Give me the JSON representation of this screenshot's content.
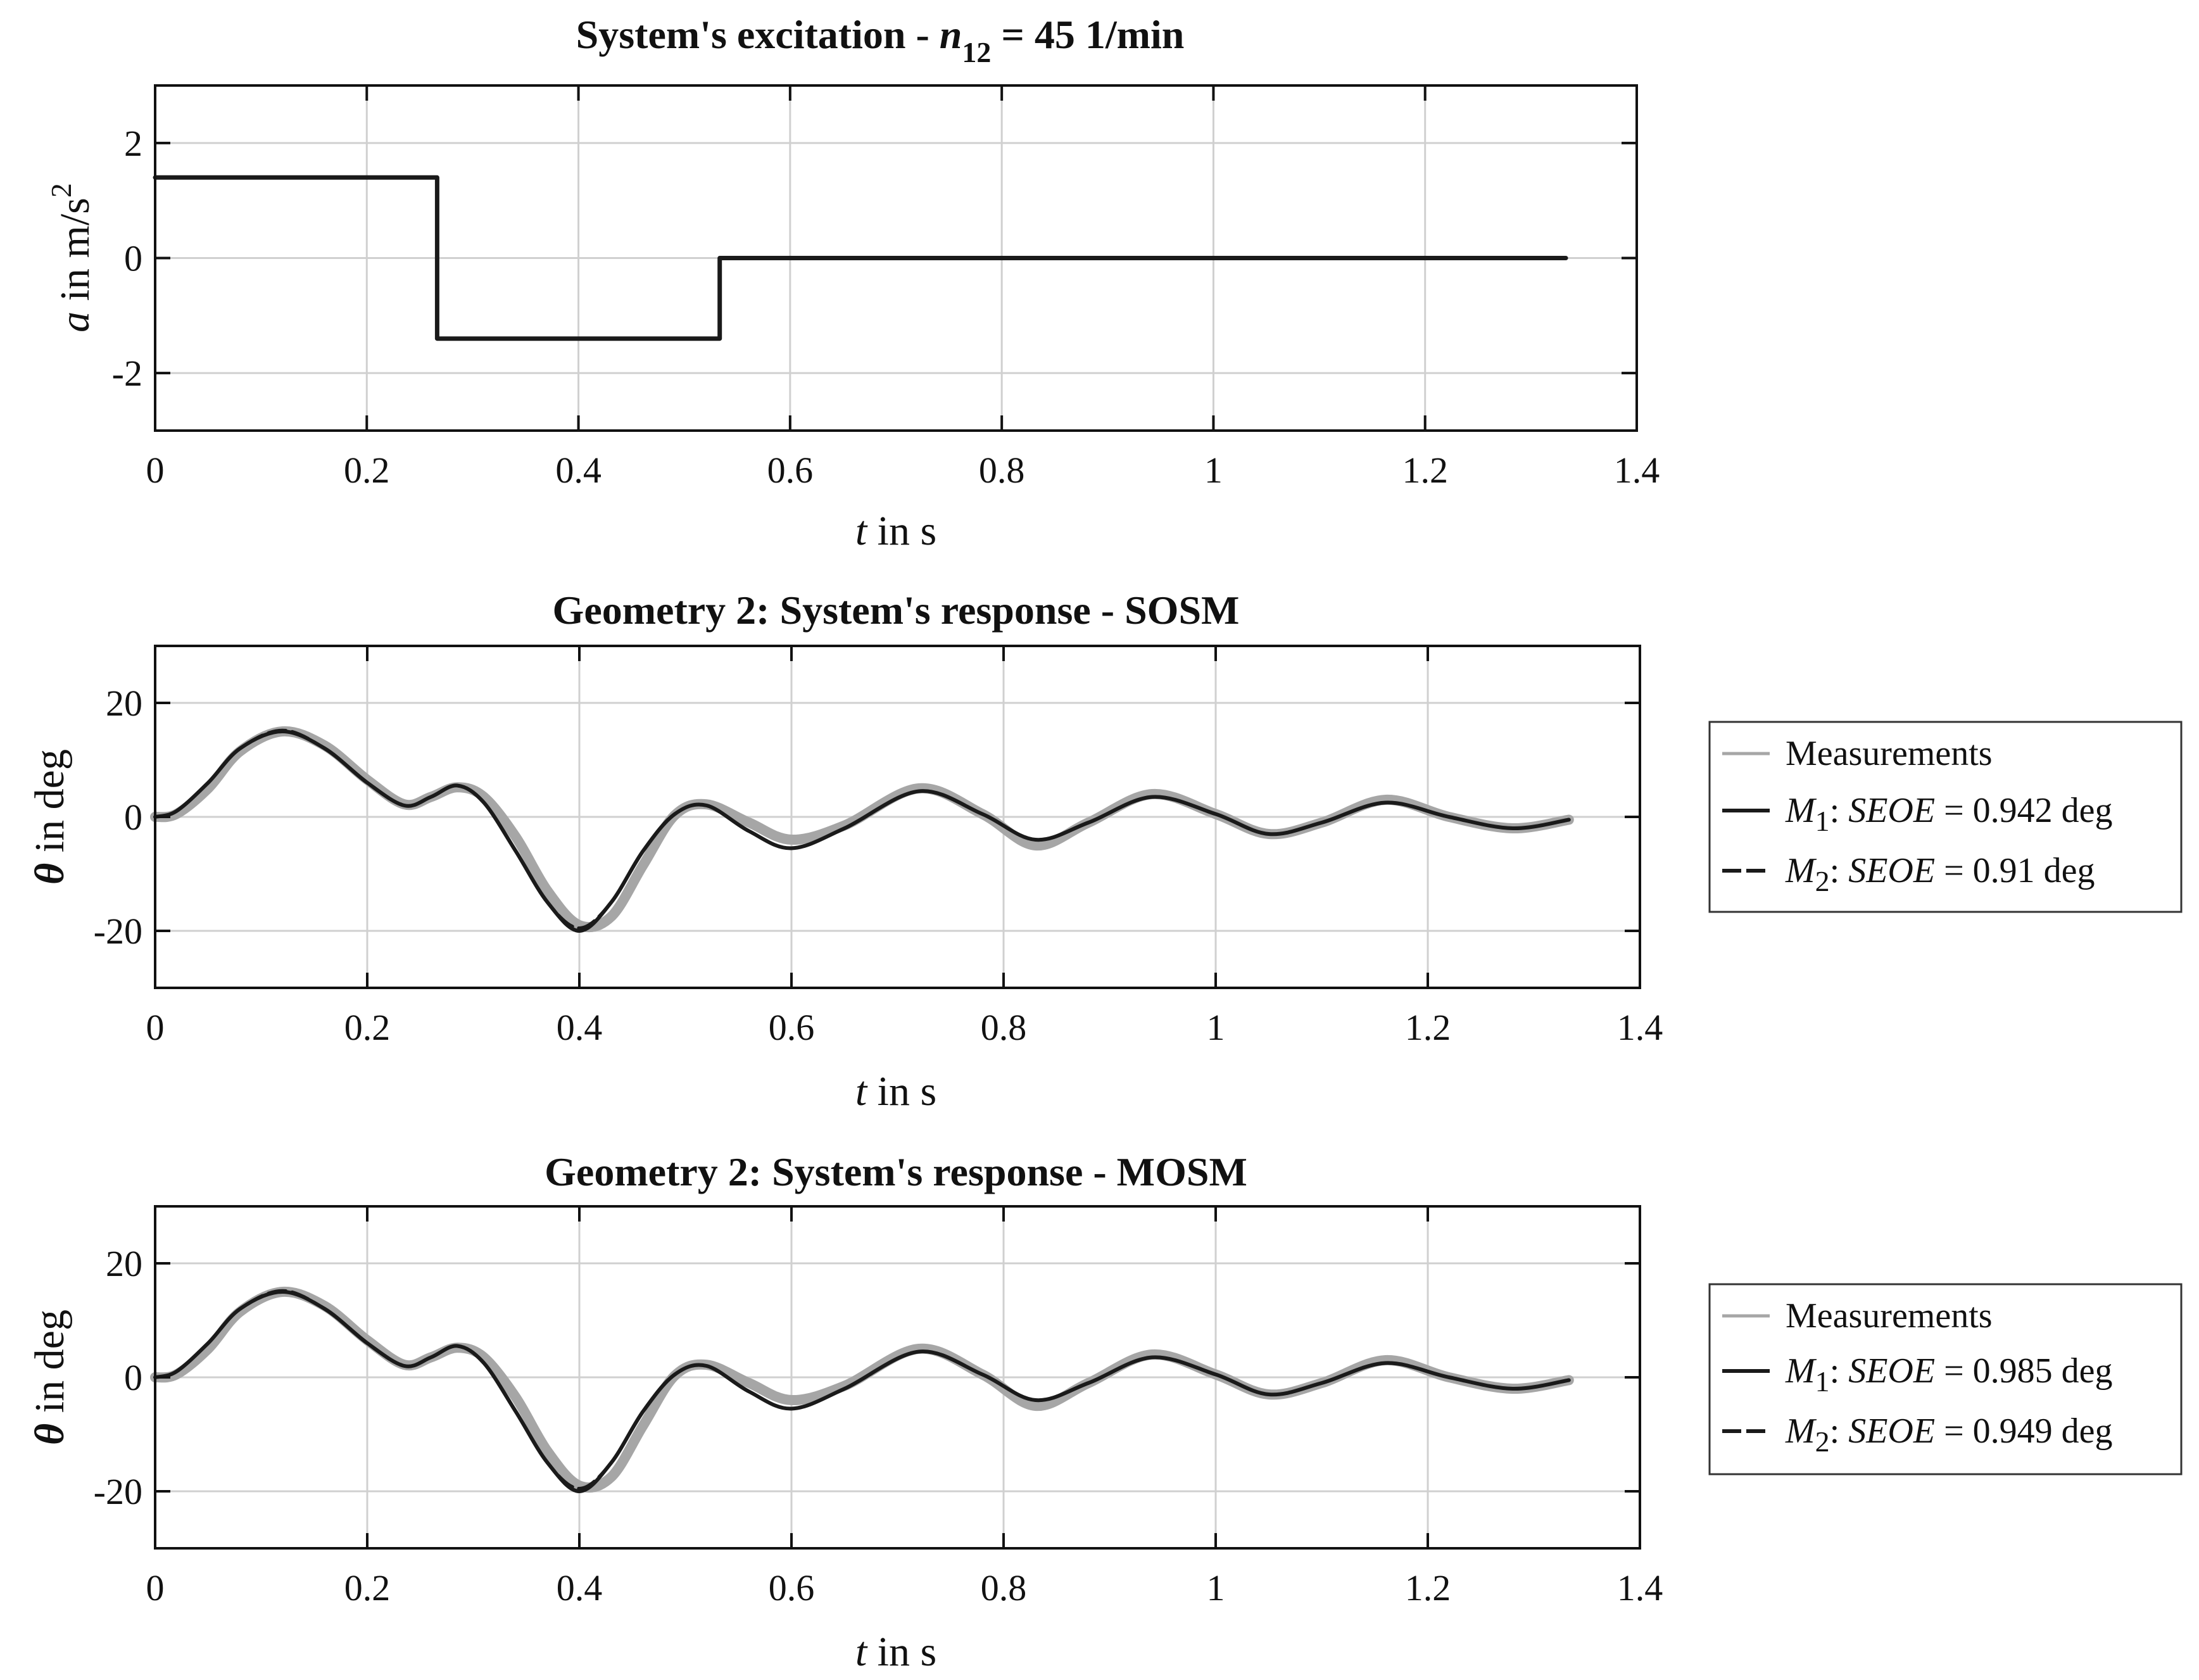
{
  "colors": {
    "model": "#1a1a1a",
    "measurement": "#a6a6a6",
    "grid": "#d0d0d0",
    "frame": "#111111"
  },
  "chart_data": [
    {
      "type": "line",
      "title": {
        "prefix": "System's excitation - ",
        "var": "n",
        "sub": "12",
        "suffix": " = 45 1/min"
      },
      "xlabel": {
        "var": "t",
        "text": " in s"
      },
      "ylabel": {
        "var": "a",
        "text": " in m/s",
        "sup": "2"
      },
      "xlim": [
        0,
        1.4
      ],
      "ylim": [
        -3,
        3
      ],
      "xticks": [
        0,
        0.2,
        0.4,
        0.6,
        0.8,
        1,
        1.2,
        1.4
      ],
      "xtick_labels": [
        "0",
        "0.2",
        "0.4",
        "0.6",
        "0.8",
        "1",
        "1.2",
        "1.4"
      ],
      "yticks": [
        -2,
        0,
        2
      ],
      "ytick_labels": [
        "-2",
        "0",
        "2"
      ],
      "grid": true,
      "series": [
        {
          "name": "excitation",
          "style": "solid",
          "x": [
            0,
            0.2665,
            0.2665,
            0.5335,
            0.5335,
            1.333
          ],
          "y": [
            1.4,
            1.4,
            -1.4,
            -1.4,
            0,
            0
          ]
        }
      ]
    },
    {
      "type": "line",
      "title": "Geometry 2: System's response - SOSM",
      "xlabel": {
        "var": "t",
        "text": " in s"
      },
      "ylabel": {
        "var": "θ",
        "text": " in deg"
      },
      "xlim": [
        0,
        1.4
      ],
      "ylim": [
        -30,
        30
      ],
      "xticks": [
        0,
        0.2,
        0.4,
        0.6,
        0.8,
        1,
        1.2,
        1.4
      ],
      "xtick_labels": [
        "0",
        "0.2",
        "0.4",
        "0.6",
        "0.8",
        "1",
        "1.2",
        "1.4"
      ],
      "yticks": [
        -20,
        0,
        20
      ],
      "ytick_labels": [
        "-20",
        "0",
        "20"
      ],
      "grid": true,
      "legend_position": "outside-right",
      "series": [
        {
          "name": "Measurements",
          "style": "measurement",
          "x": [
            0,
            0.02,
            0.05,
            0.08,
            0.12,
            0.16,
            0.2,
            0.235,
            0.26,
            0.285,
            0.31,
            0.34,
            0.37,
            0.4,
            0.43,
            0.46,
            0.49,
            0.52,
            0.56,
            0.6,
            0.65,
            0.72,
            0.78,
            0.83,
            0.88,
            0.94,
            1.0,
            1.05,
            1.1,
            1.16,
            1.22,
            1.28,
            1.333
          ],
          "y": [
            0,
            0.5,
            5,
            11.5,
            15,
            12.5,
            6.5,
            2.2,
            3.5,
            5.2,
            3.5,
            -3.5,
            -13,
            -19,
            -17.5,
            -8.5,
            0.3,
            2.2,
            -1,
            -4,
            -1.5,
            5,
            0.5,
            -5,
            -1,
            4,
            0.5,
            -3,
            -1,
            3,
            0,
            -2,
            -0.5
          ]
        },
        {
          "name": "M1: SEOE = 0.942 deg",
          "legend": {
            "var": "M",
            "sub": "1",
            "mid": ": ",
            "metric": "SEOE",
            "value": " = 0.942 deg"
          },
          "style": "solid",
          "x": [
            0,
            0.02,
            0.05,
            0.08,
            0.12,
            0.16,
            0.2,
            0.235,
            0.26,
            0.285,
            0.31,
            0.34,
            0.37,
            0.4,
            0.43,
            0.46,
            0.49,
            0.52,
            0.56,
            0.6,
            0.65,
            0.72,
            0.78,
            0.83,
            0.88,
            0.94,
            1.0,
            1.05,
            1.1,
            1.16,
            1.22,
            1.28,
            1.333
          ],
          "y": [
            0,
            1,
            6,
            12,
            15,
            12,
            6,
            2,
            3.5,
            5.5,
            2.5,
            -6,
            -15,
            -20,
            -15,
            -6,
            0.5,
            2,
            -2.5,
            -5.5,
            -2,
            4.5,
            0.5,
            -4,
            -1,
            3.5,
            0.5,
            -3,
            -1,
            2.5,
            0,
            -2,
            -0.5
          ]
        },
        {
          "name": "M2: SEOE = 0.91 deg",
          "legend": {
            "var": "M",
            "sub": "2",
            "mid": ": ",
            "metric": "SEOE",
            "value": " = 0.91 deg"
          },
          "style": "dashed",
          "x": [
            0,
            0.02,
            0.05,
            0.08,
            0.12,
            0.16,
            0.2,
            0.235,
            0.26,
            0.285,
            0.31,
            0.34,
            0.37,
            0.4,
            0.43,
            0.46,
            0.49,
            0.52,
            0.56,
            0.6,
            0.65,
            0.72,
            0.78,
            0.83,
            0.88,
            0.94,
            1.0,
            1.05,
            1.1,
            1.16,
            1.22,
            1.28,
            1.333
          ],
          "y": [
            0,
            1,
            6,
            12,
            15.2,
            12,
            6,
            2,
            3.5,
            5.5,
            2.5,
            -6,
            -15,
            -19.5,
            -15,
            -6,
            0.5,
            2,
            -2.5,
            -5.5,
            -2,
            4.5,
            0.5,
            -4,
            -1,
            3.5,
            0.5,
            -3,
            -1,
            2.5,
            0,
            -2,
            -0.5
          ]
        }
      ]
    },
    {
      "type": "line",
      "title": "Geometry 2: System's response - MOSM",
      "xlabel": {
        "var": "t",
        "text": " in s"
      },
      "ylabel": {
        "var": "θ",
        "text": " in deg"
      },
      "xlim": [
        0,
        1.4
      ],
      "ylim": [
        -30,
        30
      ],
      "xticks": [
        0,
        0.2,
        0.4,
        0.6,
        0.8,
        1,
        1.2,
        1.4
      ],
      "xtick_labels": [
        "0",
        "0.2",
        "0.4",
        "0.6",
        "0.8",
        "1",
        "1.2",
        "1.4"
      ],
      "yticks": [
        -20,
        0,
        20
      ],
      "ytick_labels": [
        "-20",
        "0",
        "20"
      ],
      "grid": true,
      "legend_position": "outside-right",
      "series": [
        {
          "name": "Measurements",
          "style": "measurement",
          "x": [
            0,
            0.02,
            0.05,
            0.08,
            0.12,
            0.16,
            0.2,
            0.235,
            0.26,
            0.285,
            0.31,
            0.34,
            0.37,
            0.4,
            0.43,
            0.46,
            0.49,
            0.52,
            0.56,
            0.6,
            0.65,
            0.72,
            0.78,
            0.83,
            0.88,
            0.94,
            1.0,
            1.05,
            1.1,
            1.16,
            1.22,
            1.28,
            1.333
          ],
          "y": [
            0,
            0.5,
            5,
            11.5,
            15,
            12.5,
            6.5,
            2.2,
            3.5,
            5.2,
            3.5,
            -3.5,
            -13,
            -19,
            -17.5,
            -8.5,
            0.3,
            2.2,
            -1,
            -4,
            -1.5,
            5,
            0.5,
            -5,
            -1,
            4,
            0.5,
            -3,
            -1,
            3,
            0,
            -2,
            -0.5
          ]
        },
        {
          "name": "M1: SEOE = 0.985 deg",
          "legend": {
            "var": "M",
            "sub": "1",
            "mid": ": ",
            "metric": "SEOE",
            "value": " = 0.985 deg"
          },
          "style": "solid",
          "x": [
            0,
            0.02,
            0.05,
            0.08,
            0.12,
            0.16,
            0.2,
            0.235,
            0.26,
            0.285,
            0.31,
            0.34,
            0.37,
            0.4,
            0.43,
            0.46,
            0.49,
            0.52,
            0.56,
            0.6,
            0.65,
            0.72,
            0.78,
            0.83,
            0.88,
            0.94,
            1.0,
            1.05,
            1.1,
            1.16,
            1.22,
            1.28,
            1.333
          ],
          "y": [
            0,
            1,
            6,
            12,
            15,
            12,
            6,
            2,
            3.5,
            5.5,
            2.5,
            -6,
            -15,
            -20,
            -15,
            -6,
            0.5,
            2,
            -2.5,
            -5.5,
            -2,
            4.5,
            0.5,
            -4,
            -1,
            3.5,
            0.5,
            -3,
            -1,
            2.5,
            0,
            -2,
            -0.5
          ]
        },
        {
          "name": "M2: SEOE = 0.949 deg",
          "legend": {
            "var": "M",
            "sub": "2",
            "mid": ": ",
            "metric": "SEOE",
            "value": " = 0.949 deg"
          },
          "style": "dashed",
          "x": [
            0,
            0.02,
            0.05,
            0.08,
            0.12,
            0.16,
            0.2,
            0.235,
            0.26,
            0.285,
            0.31,
            0.34,
            0.37,
            0.4,
            0.43,
            0.46,
            0.49,
            0.52,
            0.56,
            0.6,
            0.65,
            0.72,
            0.78,
            0.83,
            0.88,
            0.94,
            1.0,
            1.05,
            1.1,
            1.16,
            1.22,
            1.28,
            1.333
          ],
          "y": [
            0,
            1,
            6,
            12,
            15.2,
            12,
            6,
            2,
            3.5,
            5.5,
            2.5,
            -6,
            -15,
            -19.5,
            -15,
            -6,
            0.5,
            2,
            -2.5,
            -5.5,
            -2,
            4.5,
            0.5,
            -4,
            -1,
            3.5,
            0.5,
            -3,
            -1,
            2.5,
            0,
            -2,
            -0.5
          ]
        }
      ]
    }
  ]
}
